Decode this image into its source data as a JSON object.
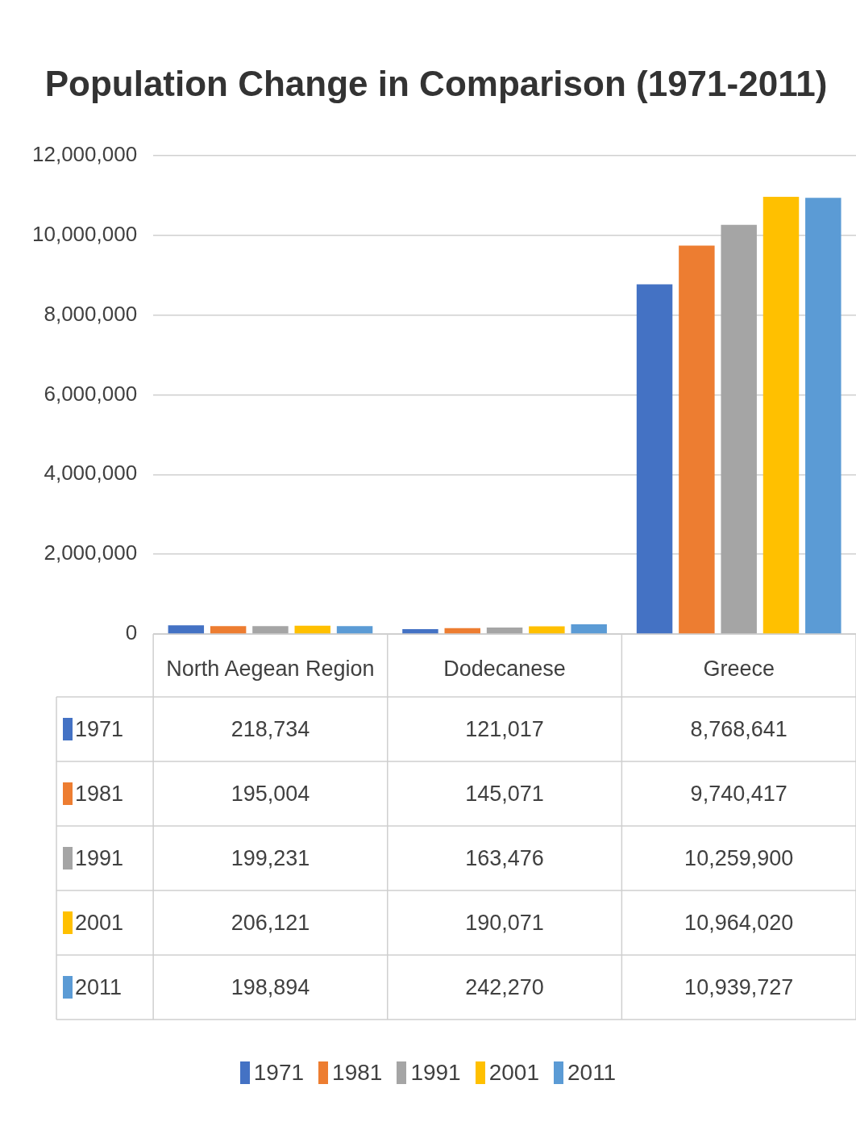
{
  "chart_data": {
    "type": "bar",
    "title": "Population Change in Comparison (1971-2011)",
    "categories": [
      "North Aegean Region",
      "Dodecanese",
      "Greece"
    ],
    "series": [
      {
        "name": "1971",
        "color": "#4472c4",
        "values": [
          218734,
          121017,
          8768641
        ],
        "value_labels": [
          "218,734",
          "121,017",
          "8,768,641"
        ]
      },
      {
        "name": "1981",
        "color": "#ed7d31",
        "values": [
          195004,
          145071,
          9740417
        ],
        "value_labels": [
          "195,004",
          "145,071",
          "9,740,417"
        ]
      },
      {
        "name": "1991",
        "color": "#a5a5a5",
        "values": [
          199231,
          163476,
          10259900
        ],
        "value_labels": [
          "199,231",
          "163,476",
          "10,259,900"
        ]
      },
      {
        "name": "2001",
        "color": "#ffc000",
        "values": [
          206121,
          190071,
          10964020
        ],
        "value_labels": [
          "206,121",
          "190,071",
          "10,964,020"
        ]
      },
      {
        "name": "2011",
        "color": "#5b9bd5",
        "values": [
          198894,
          242270,
          10939727
        ],
        "value_labels": [
          "198,894",
          "242,270",
          "10,939,727"
        ]
      }
    ],
    "ylim": [
      0,
      12000000
    ],
    "yticks": [
      0,
      {
        "value": 2000000,
        "label": "2,000,000"
      },
      {
        "value": 4000000,
        "label": "4,000,000"
      },
      {
        "value": 6000000,
        "label": "6,000,000"
      },
      {
        "value": 8000000,
        "label": "8,000,000"
      },
      {
        "value": 10000000,
        "label": "10,000,000"
      },
      {
        "value": 12000000,
        "label": "12,000,000"
      }
    ],
    "grid": "y",
    "legend": "bottom"
  }
}
